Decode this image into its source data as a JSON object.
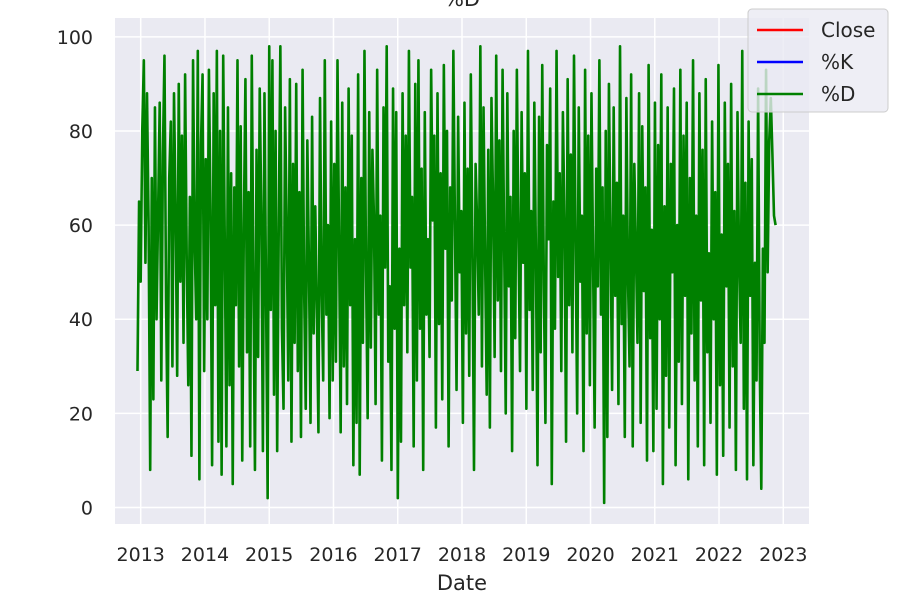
{
  "chart_data": {
    "type": "line",
    "title": "%D",
    "xlabel": "Date",
    "ylabel": "",
    "x_ticks": [
      "2013",
      "2014",
      "2015",
      "2016",
      "2017",
      "2018",
      "2019",
      "2020",
      "2021",
      "2022",
      "2023"
    ],
    "y_ticks": [
      0,
      20,
      40,
      60,
      80,
      100
    ],
    "xlim": [
      2012.6,
      2023.4
    ],
    "ylim": [
      -3.5,
      104
    ],
    "grid": true,
    "legend_position": "upper-right",
    "series": [
      {
        "name": "Close",
        "color": "#ff0000",
        "values": []
      },
      {
        "name": "%K",
        "color": "#0000ff",
        "values": []
      },
      {
        "name": "%D",
        "color": "#008000",
        "x_start": 2012.95,
        "x_end": 2022.88,
        "values": [
          29,
          65,
          48,
          80,
          95,
          52,
          88,
          60,
          8,
          70,
          23,
          85,
          40,
          63,
          86,
          27,
          75,
          96,
          44,
          15,
          70,
          82,
          30,
          88,
          63,
          28,
          90,
          48,
          79,
          35,
          92,
          53,
          26,
          66,
          11,
          95,
          57,
          40,
          97,
          6,
          77,
          92,
          29,
          74,
          40,
          93,
          63,
          9,
          88,
          43,
          97,
          14,
          80,
          7,
          96,
          56,
          13,
          85,
          26,
          71,
          5,
          68,
          43,
          95,
          30,
          81,
          10,
          60,
          91,
          33,
          67,
          13,
          96,
          49,
          8,
          76,
          32,
          89,
          63,
          12,
          88,
          45,
          2,
          98,
          42,
          95,
          24,
          80,
          12,
          60,
          98,
          38,
          21,
          85,
          59,
          27,
          91,
          14,
          73,
          35,
          90,
          29,
          67,
          15,
          93,
          46,
          21,
          78,
          52,
          18,
          83,
          37,
          64,
          42,
          16,
          87,
          46,
          27,
          95,
          41,
          60,
          19,
          82,
          27,
          73,
          31,
          95,
          56,
          16,
          86,
          30,
          68,
          22,
          89,
          43,
          79,
          9,
          57,
          18,
          92,
          7,
          70,
          35,
          97,
          50,
          19,
          84,
          34,
          76,
          61,
          22,
          93,
          41,
          62,
          10,
          85,
          51,
          98,
          31,
          47,
          8,
          89,
          38,
          84,
          2,
          55,
          14,
          88,
          43,
          79,
          33,
          97,
          51,
          66,
          13,
          90,
          27,
          95,
          38,
          72,
          8,
          84,
          41,
          57,
          32,
          93,
          61,
          79,
          17,
          88,
          39,
          71,
          23,
          94,
          55,
          80,
          13,
          68,
          44,
          97,
          60,
          25,
          83,
          50,
          63,
          18,
          86,
          37,
          72,
          28,
          92,
          55,
          8,
          73,
          60,
          41,
          98,
          30,
          85,
          53,
          24,
          76,
          17,
          87,
          65,
          32,
          96,
          44,
          78,
          29,
          93,
          56,
          20,
          88,
          47,
          66,
          12,
          80,
          36,
          93,
          58,
          29,
          84,
          52,
          71,
          21,
          97,
          42,
          63,
          25,
          86,
          54,
          9,
          83,
          33,
          94,
          47,
          18,
          77,
          57,
          89,
          5,
          65,
          38,
          97,
          49,
          71,
          29,
          84,
          61,
          14,
          91,
          43,
          75,
          33,
          96,
          57,
          20,
          85,
          48,
          62,
          12,
          93,
          37,
          79,
          26,
          88,
          53,
          17,
          72,
          47,
          95,
          41,
          68,
          1,
          80,
          15,
          90,
          57,
          25,
          85,
          45,
          69,
          22,
          98,
          39,
          62,
          15,
          87,
          49,
          30,
          92,
          13,
          73,
          55,
          35,
          88,
          18,
          81,
          46,
          68,
          10,
          94,
          36,
          59,
          12,
          86,
          21,
          77,
          40,
          92,
          5,
          64,
          28,
          85,
          17,
          73,
          50,
          89,
          9,
          60,
          31,
          93,
          22,
          79,
          45,
          86,
          6,
          70,
          37,
          95,
          27,
          62,
          13,
          88,
          44,
          76,
          9,
          91,
          33,
          54,
          18,
          82,
          40,
          67,
          7,
          94,
          26,
          58,
          11,
          86,
          47,
          73,
          17,
          90,
          30,
          63,
          8,
          84,
          52,
          35,
          97,
          21,
          69,
          6,
          82,
          45,
          74,
          9,
          52,
          27,
          89,
          31,
          4,
          55,
          35,
          93,
          50,
          78,
          87,
          75,
          62,
          60
        ]
      }
    ]
  }
}
